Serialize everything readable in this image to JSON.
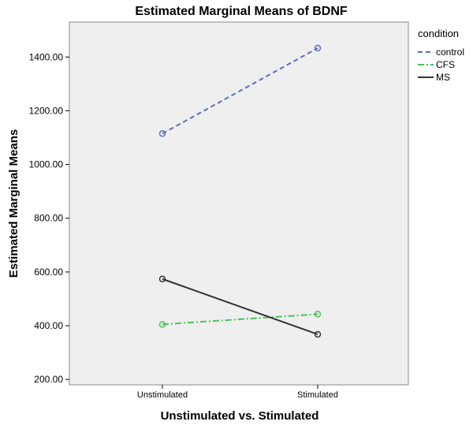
{
  "chart_data": {
    "type": "line",
    "title": "Estimated Marginal Means of BDNF",
    "xlabel": "Unstimulated vs. Stimulated",
    "ylabel": "Estimated Marginal Means",
    "categories": [
      "Unstimulated",
      "Stimulated"
    ],
    "ylim": [
      180,
      1530
    ],
    "yticks": [
      200,
      400,
      600,
      800,
      1000,
      1200,
      1400
    ],
    "ytick_labels": [
      "200.00",
      "400.00",
      "600.00",
      "800.00",
      "1000.00",
      "1200.00",
      "1400.00"
    ],
    "grid": false,
    "plot_background": "#efefef",
    "legend": {
      "title": "condition",
      "placement": "outside-right-top"
    },
    "series": [
      {
        "name": "control",
        "values": [
          1115,
          1433
        ],
        "color": "#5b6fbf",
        "dash": "dashed"
      },
      {
        "name": "CFS",
        "values": [
          405,
          443
        ],
        "color": "#4cc25a",
        "dash": "dashdot"
      },
      {
        "name": "MS",
        "values": [
          574,
          368
        ],
        "color": "#333333",
        "dash": "solid"
      }
    ]
  }
}
